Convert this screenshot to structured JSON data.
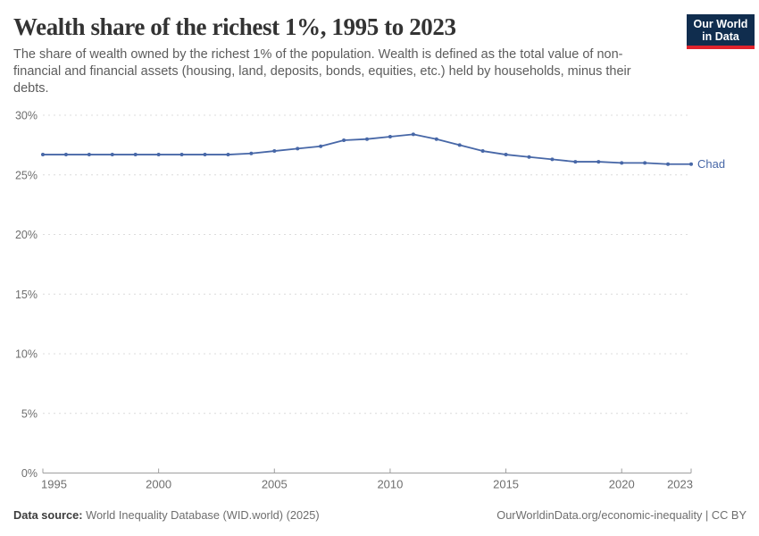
{
  "header": {
    "title": "Wealth share of the richest 1%, 1995 to 2023",
    "subtitle": "The share of wealth owned by the richest 1% of the population. Wealth is defined as the total value of non-financial and financial assets (housing, land, deposits, bonds, equities, etc.) held by households, minus their debts.",
    "logo": {
      "line1": "Our World",
      "line2": "in Data",
      "background": "#102d4e",
      "accent": "#e0232c"
    }
  },
  "chart_data": {
    "type": "line",
    "title": "Wealth share of the richest 1%, 1995 to 2023",
    "xlabel": "",
    "ylabel": "",
    "x": [
      1995,
      1996,
      1997,
      1998,
      1999,
      2000,
      2001,
      2002,
      2003,
      2004,
      2005,
      2006,
      2007,
      2008,
      2009,
      2010,
      2011,
      2012,
      2013,
      2014,
      2015,
      2016,
      2017,
      2018,
      2019,
      2020,
      2021,
      2022,
      2023
    ],
    "series": [
      {
        "name": "Chad",
        "color": "#4767a7",
        "values": [
          26.7,
          26.7,
          26.7,
          26.7,
          26.7,
          26.7,
          26.7,
          26.7,
          26.7,
          26.8,
          27.0,
          27.2,
          27.4,
          27.9,
          28.0,
          28.2,
          28.4,
          28.0,
          27.5,
          27.0,
          26.7,
          26.5,
          26.3,
          26.1,
          26.1,
          26.0,
          26.0,
          25.9,
          25.9
        ]
      }
    ],
    "xlim": [
      1995,
      2023
    ],
    "ylim": [
      0,
      30
    ],
    "xticks": [
      1995,
      2000,
      2005,
      2010,
      2015,
      2020,
      2023
    ],
    "yticks": [
      0,
      5,
      10,
      15,
      20,
      25,
      30
    ],
    "ytick_suffix": "%",
    "grid": "horizontal-dashed",
    "legend_position": "end-of-line-label",
    "colors": {
      "grid": "#dcdcdc",
      "axis": "#9e9e9e",
      "tick_text": "#6e6e6e"
    }
  },
  "footer": {
    "source_label": "Data source:",
    "source_value": "World Inequality Database (WID.world) (2025)",
    "rights": "OurWorldinData.org/economic-inequality | CC BY"
  }
}
